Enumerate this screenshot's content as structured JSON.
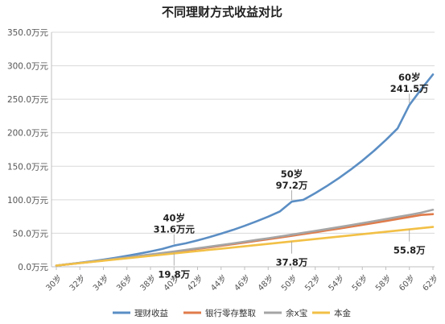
{
  "chart_data": {
    "type": "line",
    "title": "不同理财方式收益对比",
    "ylim": [
      0,
      350
    ],
    "y_ticks": [
      0,
      50,
      100,
      150,
      200,
      250,
      300,
      350
    ],
    "y_tick_labels": [
      "0.0万元",
      "50.0万元",
      "100.0万元",
      "150.0万元",
      "200.0万元",
      "250.0万元",
      "300.0万元",
      "350.0万元"
    ],
    "x": [
      30,
      31,
      32,
      33,
      34,
      35,
      36,
      37,
      38,
      39,
      40,
      41,
      42,
      43,
      44,
      45,
      46,
      47,
      48,
      49,
      50,
      51,
      52,
      53,
      54,
      55,
      56,
      57,
      58,
      59,
      60,
      61,
      62
    ],
    "x_tick_values": [
      30,
      32,
      34,
      36,
      38,
      40,
      42,
      44,
      46,
      48,
      50,
      52,
      54,
      56,
      58,
      60,
      62
    ],
    "x_tick_labels": [
      "30岁",
      "32岁",
      "34岁",
      "36岁",
      "38岁",
      "40岁",
      "42岁",
      "44岁",
      "46岁",
      "48岁",
      "50岁",
      "52岁",
      "54岁",
      "56岁",
      "58岁",
      "60岁",
      "62岁"
    ],
    "series": [
      {
        "name": "理财收益",
        "color": "#5b8ec4",
        "values": [
          1.8,
          3.8,
          5.9,
          8.2,
          10.7,
          13.4,
          16.3,
          19.5,
          22.9,
          26.6,
          31.6,
          35.0,
          39.4,
          44.2,
          49.4,
          55.0,
          61.1,
          67.7,
          74.8,
          82.6,
          97.2,
          100.0,
          109.9,
          120.6,
          132.2,
          144.8,
          158.4,
          173.2,
          189.2,
          206.5,
          241.5,
          265.0,
          287.0
        ]
      },
      {
        "name": "银行零存整取",
        "color": "#e07b4a",
        "values": [
          1.8,
          3.7,
          5.6,
          7.5,
          9.5,
          11.5,
          13.6,
          15.7,
          17.8,
          20.0,
          22.2,
          24.4,
          26.7,
          29.0,
          31.3,
          33.7,
          36.1,
          38.6,
          41.1,
          43.6,
          46.2,
          48.8,
          51.5,
          54.2,
          56.9,
          59.7,
          62.5,
          65.4,
          68.3,
          71.3,
          74.3,
          77.3,
          78.5
        ]
      },
      {
        "name": "余x宝",
        "color": "#a5a5a5",
        "values": [
          1.8,
          3.8,
          5.8,
          7.8,
          9.8,
          11.9,
          14.0,
          16.2,
          18.4,
          20.6,
          22.9,
          25.2,
          27.6,
          30.0,
          32.4,
          34.9,
          37.4,
          40.0,
          42.6,
          45.2,
          47.9,
          50.7,
          53.5,
          56.3,
          59.2,
          62.1,
          65.1,
          68.1,
          71.2,
          74.3,
          77.5,
          80.7,
          85.0
        ]
      },
      {
        "name": "本金",
        "color": "#f2c046",
        "values": [
          1.8,
          3.6,
          5.4,
          7.2,
          9.0,
          10.8,
          12.6,
          14.4,
          16.2,
          18.0,
          19.8,
          21.6,
          23.4,
          25.2,
          27.0,
          28.8,
          30.6,
          32.4,
          34.2,
          36.0,
          37.8,
          39.6,
          41.4,
          43.2,
          45.0,
          46.8,
          48.6,
          50.4,
          52.2,
          54.0,
          55.8,
          57.6,
          59.4
        ]
      }
    ],
    "annotations": [
      {
        "series": "理财收益",
        "x": 40,
        "line1": "40岁",
        "line2": "31.6万元"
      },
      {
        "series": "理财收益",
        "x": 50,
        "line1": "50岁",
        "line2": "97.2万"
      },
      {
        "series": "理财收益",
        "x": 60,
        "line1": "60岁",
        "line2": "241.5万"
      },
      {
        "series": "本金",
        "x": 40,
        "line1": "19.8万",
        "line2": ""
      },
      {
        "series": "本金",
        "x": 50,
        "line1": "37.8万",
        "line2": ""
      },
      {
        "series": "本金",
        "x": 60,
        "line1": "55.8万",
        "line2": ""
      }
    ],
    "grid": true,
    "legend_position": "bottom"
  }
}
